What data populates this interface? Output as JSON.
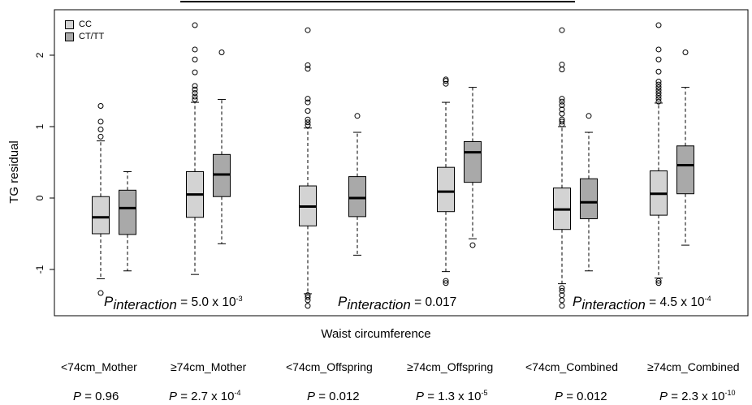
{
  "chart_data": {
    "type": "boxplot",
    "title": "",
    "xlabel": "Waist circumference",
    "ylabel": "TG residual",
    "ylim": [
      -1.6,
      2.6
    ],
    "y_ticks": [
      -1,
      0,
      1,
      2
    ],
    "y_tick_labels": [
      "-1",
      "0",
      "1",
      "2"
    ],
    "legend": {
      "position": "top-left",
      "entries": [
        {
          "name": "CC",
          "color": "#d3d3d3"
        },
        {
          "name": "CT/TT",
          "color": "#a9a9a9"
        }
      ]
    },
    "groups": [
      {
        "label": "<74cm_Mother",
        "p_base": "P",
        "p_value": "= 0.96",
        "p_exp": ""
      },
      {
        "label": "≥74cm_Mother",
        "p_base": "P",
        "p_value": "= 2.7 x 10",
        "p_exp": "-4"
      },
      {
        "label": "<74cm_Offspring",
        "p_base": "P",
        "p_value": "= 0.012",
        "p_exp": ""
      },
      {
        "label": "≥74cm_Offspring",
        "p_base": "P",
        "p_value": "= 1.3 x 10",
        "p_exp": "-5"
      },
      {
        "label": "<74cm_Combined",
        "p_base": "P",
        "p_value": "= 0.012",
        "p_exp": ""
      },
      {
        "label": "≥74cm_Combined",
        "p_base": "P",
        "p_value": "= 2.3 x 10",
        "p_exp": "-10"
      }
    ],
    "interactions": [
      {
        "base": "P",
        "sub": "interaction",
        "value": "= 5.0 x 10",
        "exp": "-3"
      },
      {
        "base": "P",
        "sub": "interaction",
        "value": "= 0.017",
        "exp": ""
      },
      {
        "base": "P",
        "sub": "interaction",
        "value": "= 4.5 x 10",
        "exp": "-4"
      }
    ],
    "series": [
      {
        "name": "CC",
        "boxes": [
          {
            "group": "<74cm_Mother",
            "whisker_low": -1.13,
            "q1": -0.5,
            "median": -0.27,
            "q3": 0.02,
            "whisker_high": 0.8,
            "outliers": [
              -1.33,
              0.86,
              0.96,
              1.07,
              1.29
            ]
          },
          {
            "group": "≥74cm_Mother",
            "whisker_low": -1.07,
            "q1": -0.27,
            "median": 0.05,
            "q3": 0.37,
            "whisker_high": 1.34,
            "outliers": [
              1.38,
              1.42,
              1.47,
              1.52,
              1.57,
              1.76,
              1.94,
              2.08,
              2.42
            ]
          },
          {
            "group": "<74cm_Offspring",
            "whisker_low": -1.34,
            "q1": -0.39,
            "median": -0.12,
            "q3": 0.17,
            "whisker_high": 0.98,
            "outliers": [
              -1.51,
              -1.43,
              -1.39,
              -1.36,
              1.02,
              1.06,
              1.1,
              1.22,
              1.34,
              1.39,
              1.81,
              1.86,
              2.35
            ]
          },
          {
            "group": "≥74cm_Offspring",
            "whisker_low": -1.03,
            "q1": -0.19,
            "median": 0.09,
            "q3": 0.43,
            "whisker_high": 1.34,
            "outliers": [
              -1.19,
              -1.16,
              1.6,
              1.64,
              1.66
            ]
          },
          {
            "group": "<74cm_Combined",
            "whisker_low": -1.2,
            "q1": -0.44,
            "median": -0.16,
            "q3": 0.14,
            "whisker_high": 1.0,
            "outliers": [
              -1.51,
              -1.43,
              -1.36,
              -1.3,
              -1.26,
              1.03,
              1.07,
              1.1,
              1.18,
              1.24,
              1.3,
              1.35,
              1.39,
              1.8,
              1.87,
              2.35
            ]
          },
          {
            "group": "≥74cm_Combined",
            "whisker_low": -1.12,
            "q1": -0.24,
            "median": 0.06,
            "q3": 0.38,
            "whisker_high": 1.33,
            "outliers": [
              -1.19,
              -1.16,
              1.35,
              1.39,
              1.43,
              1.47,
              1.51,
              1.55,
              1.59,
              1.63,
              1.77,
              1.94,
              2.08,
              2.42
            ]
          }
        ]
      },
      {
        "name": "CT/TT",
        "boxes": [
          {
            "group": "<74cm_Mother",
            "whisker_low": -1.02,
            "q1": -0.51,
            "median": -0.14,
            "q3": 0.11,
            "whisker_high": 0.37,
            "outliers": []
          },
          {
            "group": "≥74cm_Mother",
            "whisker_low": -0.64,
            "q1": 0.02,
            "median": 0.33,
            "q3": 0.61,
            "whisker_high": 1.38,
            "outliers": [
              2.04
            ]
          },
          {
            "group": "<74cm_Offspring",
            "whisker_low": -0.8,
            "q1": -0.26,
            "median": 0.0,
            "q3": 0.3,
            "whisker_high": 0.92,
            "outliers": [
              1.15
            ]
          },
          {
            "group": "≥74cm_Offspring",
            "whisker_low": -0.57,
            "q1": 0.22,
            "median": 0.64,
            "q3": 0.79,
            "whisker_high": 1.55,
            "outliers": [
              -0.66
            ]
          },
          {
            "group": "<74cm_Combined",
            "whisker_low": -1.02,
            "q1": -0.29,
            "median": -0.06,
            "q3": 0.27,
            "whisker_high": 0.92,
            "outliers": [
              1.15
            ]
          },
          {
            "group": "≥74cm_Combined",
            "whisker_low": -0.66,
            "q1": 0.06,
            "median": 0.46,
            "q3": 0.73,
            "whisker_high": 1.55,
            "outliers": [
              2.04
            ]
          }
        ]
      }
    ]
  }
}
